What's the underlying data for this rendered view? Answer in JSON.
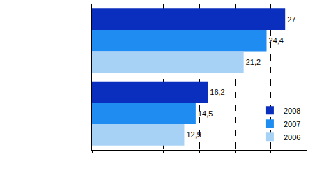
{
  "chart_data": {
    "type": "bar",
    "orientation": "horizontal",
    "categories": [
      null,
      null
    ],
    "series": [
      {
        "name": "2008",
        "color": "#0a2ebd",
        "values": [
          27,
          16.2
        ],
        "value_labels": [
          "27",
          "16,2"
        ]
      },
      {
        "name": "2007",
        "color": "#1e8cf0",
        "values": [
          24.4,
          14.5
        ],
        "value_labels": [
          "24,4",
          "14,5"
        ]
      },
      {
        "name": "2006",
        "color": "#a8d2f5",
        "values": [
          21.2,
          12.9
        ],
        "value_labels": [
          "21,2",
          "12,9"
        ]
      }
    ],
    "xlim": [
      0,
      30
    ],
    "xticks": [
      0,
      5,
      10,
      15,
      20,
      25
    ],
    "grid": true,
    "legend": "lower right",
    "data_labels": true,
    "tick_labels": false
  }
}
